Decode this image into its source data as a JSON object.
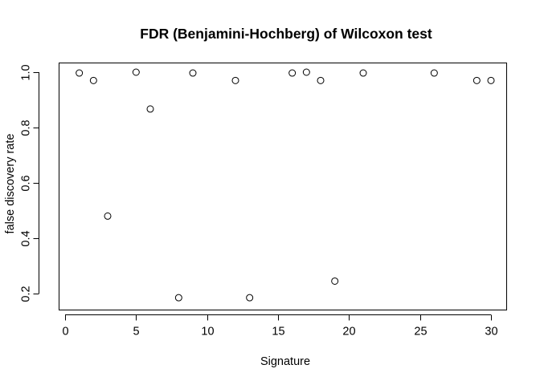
{
  "chart_data": {
    "type": "scatter",
    "title": "FDR (Benjamini-Hochberg) of Wilcoxon test",
    "xlabel": "Signature",
    "ylabel": "false discovery rate",
    "xlim": [
      0,
      30
    ],
    "ylim": [
      0.2,
      1.0
    ],
    "xticks": [
      0,
      5,
      10,
      15,
      20,
      25,
      30
    ],
    "yticks": [
      0.2,
      0.4,
      0.6,
      0.8,
      1.0
    ],
    "xtick_labels": [
      "0",
      "5",
      "10",
      "15",
      "20",
      "25",
      "30"
    ],
    "ytick_labels": [
      "0.2",
      "0.4",
      "0.6",
      "0.8",
      "1.0"
    ],
    "grid": false,
    "legend": "none",
    "point_color": "#000000",
    "x": [
      1,
      2,
      3,
      5,
      6,
      8,
      9,
      12,
      13,
      16,
      17,
      18,
      19,
      21,
      26,
      29,
      30
    ],
    "y": [
      0.997,
      0.97,
      0.48,
      1.0,
      0.867,
      0.185,
      0.997,
      0.97,
      0.185,
      0.997,
      1.0,
      0.97,
      0.245,
      0.997,
      0.997,
      0.97,
      0.97
    ]
  }
}
